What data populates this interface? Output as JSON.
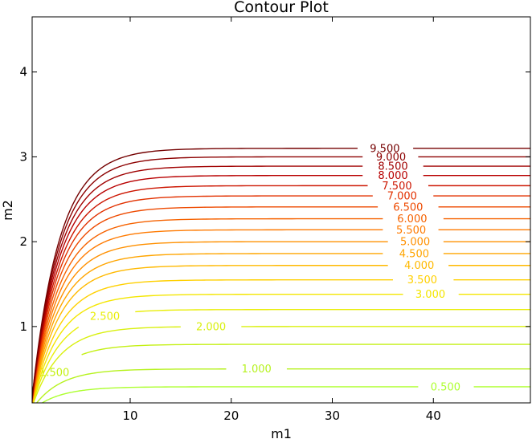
{
  "chart_data": {
    "type": "contour",
    "title": "Contour Plot",
    "xlabel": "m1",
    "ylabel": "m2",
    "xlim": [
      0.3,
      49.6
    ],
    "ylim": [
      0.1,
      4.65
    ],
    "xticks": [
      10,
      20,
      30,
      40
    ],
    "yticks": [
      1,
      2,
      3,
      4
    ],
    "grid": false,
    "colormap": "yellow-green to dark red",
    "levels": [
      {
        "label": "0.500",
        "value": 0.5,
        "asymptote_m2": 0.29,
        "color": "#adff2f",
        "label_x": 41.2
      },
      {
        "label": "1.000",
        "value": 1.0,
        "asymptote_m2": 0.5,
        "color": "#b6f21e",
        "label_x": 22.5
      },
      {
        "label": "1.500",
        "value": 1.5,
        "asymptote_m2": 0.79,
        "color": "#c4f014",
        "label_x": 2.5
      },
      {
        "label": "2.000",
        "value": 2.0,
        "asymptote_m2": 1.0,
        "color": "#d9f00f",
        "label_x": 18.0
      },
      {
        "label": "2.500",
        "value": 2.5,
        "asymptote_m2": 1.2,
        "color": "#e9ee08",
        "label_x": 7.5
      },
      {
        "label": "3.000",
        "value": 3.0,
        "asymptote_m2": 1.38,
        "color": "#f4e600",
        "label_x": 39.7
      },
      {
        "label": "3.500",
        "value": 3.5,
        "asymptote_m2": 1.55,
        "color": "#ffd000",
        "label_x": 38.9
      },
      {
        "label": "4.000",
        "value": 4.0,
        "asymptote_m2": 1.72,
        "color": "#ffb900",
        "label_x": 38.6
      },
      {
        "label": "4.500",
        "value": 4.5,
        "asymptote_m2": 1.86,
        "color": "#ffa500",
        "label_x": 38.1
      },
      {
        "label": "5.000",
        "value": 5.0,
        "asymptote_m2": 2.0,
        "color": "#ff9000",
        "label_x": 38.2
      },
      {
        "label": "5.500",
        "value": 5.5,
        "asymptote_m2": 2.14,
        "color": "#ff7a00",
        "label_x": 37.8
      },
      {
        "label": "6.000",
        "value": 6.0,
        "asymptote_m2": 2.27,
        "color": "#f66200",
        "label_x": 37.9
      },
      {
        "label": "6.500",
        "value": 6.5,
        "asymptote_m2": 2.41,
        "color": "#ee4a00",
        "label_x": 37.5
      },
      {
        "label": "7.000",
        "value": 7.0,
        "asymptote_m2": 2.54,
        "color": "#e23100",
        "label_x": 36.9
      },
      {
        "label": "7.500",
        "value": 7.5,
        "asymptote_m2": 2.66,
        "color": "#cc1500",
        "label_x": 36.4
      },
      {
        "label": "8.000",
        "value": 8.0,
        "asymptote_m2": 2.78,
        "color": "#b80000",
        "label_x": 36.0
      },
      {
        "label": "8.500",
        "value": 8.5,
        "asymptote_m2": 2.89,
        "color": "#a00000",
        "label_x": 36.0
      },
      {
        "label": "9.000",
        "value": 9.0,
        "asymptote_m2": 3.0,
        "color": "#8c0000",
        "label_x": 35.8
      },
      {
        "label": "9.500",
        "value": 9.5,
        "asymptote_m2": 3.1,
        "color": "#740000",
        "label_x": 35.2
      }
    ]
  }
}
